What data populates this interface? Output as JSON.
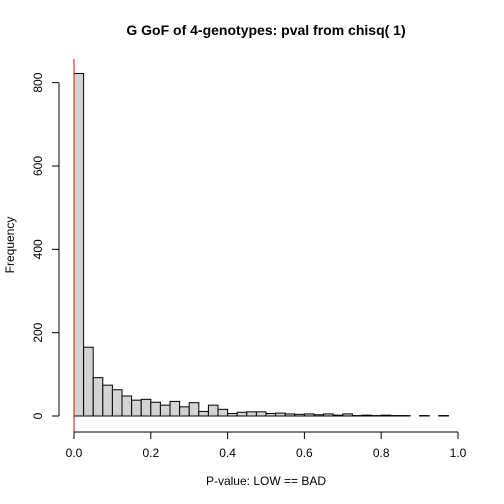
{
  "chart_data": {
    "type": "bar",
    "title": "G GoF of 4-genotypes: pval from chisq( 1)",
    "xlabel": "P-value: LOW == BAD",
    "ylabel": "Frequency",
    "xlim": [
      0,
      1
    ],
    "ylim": [
      0,
      850
    ],
    "x_ticks": [
      "0.0",
      "0.2",
      "0.4",
      "0.6",
      "0.8",
      "1.0"
    ],
    "y_ticks": [
      "0",
      "200",
      "400",
      "600",
      "800"
    ],
    "bin_width": 0.025,
    "values": [
      822,
      165,
      92,
      74,
      63,
      48,
      38,
      40,
      33,
      26,
      35,
      22,
      32,
      11,
      26,
      16,
      6,
      9,
      10,
      10,
      6,
      7,
      5,
      4,
      5,
      3,
      5,
      2,
      5,
      1,
      2,
      1,
      2,
      1,
      1,
      0,
      1,
      0,
      1,
      0
    ],
    "bar_fill": "#d3d3d3",
    "bar_stroke": "#000000",
    "reference_line": {
      "x": 0,
      "color": "#ff0000"
    },
    "grid": false,
    "legend": "none"
  }
}
